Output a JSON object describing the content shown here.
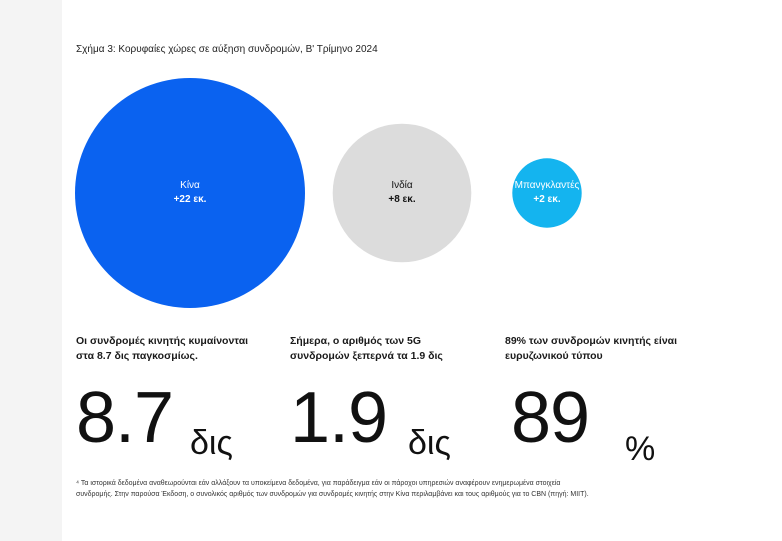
{
  "figure": {
    "title": "Σχήμα 3: Κορυφαίες χώρες σε αύξηση συνδρομών, Β' Τρίμηνο 2024"
  },
  "colors": {
    "china": "#0a62f0",
    "india": "#dcdcdc",
    "bangladesh": "#14b4ef"
  },
  "chart_data": {
    "type": "bubble",
    "title": "Σχήμα 3: Κορυφαίες χώρες σε αύξηση συνδρομών, Β' Τρίμηνο 2024",
    "points": [
      {
        "name": "Κίνα",
        "label": "+22 εκ.",
        "value": 22,
        "color": "#0a62f0",
        "text_color": "#ffffff"
      },
      {
        "name": "Ινδία",
        "label": "+8 εκ.",
        "value": 8,
        "color": "#dcdcdc",
        "text_color": "#111111"
      },
      {
        "name": "Μπανγκλαντές",
        "label": "+2 εκ.",
        "value": 2,
        "color": "#14b4ef",
        "text_color": "#ffffff"
      }
    ]
  },
  "stats": [
    {
      "desc": "Οι συνδρομές κινητής κυμαίνονται στα 8.7 δις παγκοσμίως.",
      "value": "8.7",
      "unit": "δις"
    },
    {
      "desc": "Σήμερα, ο αριθμός των 5G συνδρομών ξεπερνά τα 1.9 δις",
      "value": "1.9",
      "unit": "δις"
    },
    {
      "desc": "89% των συνδρομών κινητής είναι ευρυζωνικού τύπου",
      "value": "89",
      "unit": "%"
    }
  ],
  "footnote": "⁴ Τα ιστορικά δεδομένα αναθεωρούνται εάν αλλάξουν τα υποκείμενα δεδομένα, για παράδειγμα εάν οι πάροχοι υπηρεσιών αναφέρουν ενημερωμένα στοιχεία συνδρομής. Στην παρούσα Έκδοση, ο συνολικός αριθμός των συνδρομών για συνδρομές κινητής στην Κίνα περιλαμβάνει και τους αριθμούς για το CBN (πηγή: MIIT)."
}
